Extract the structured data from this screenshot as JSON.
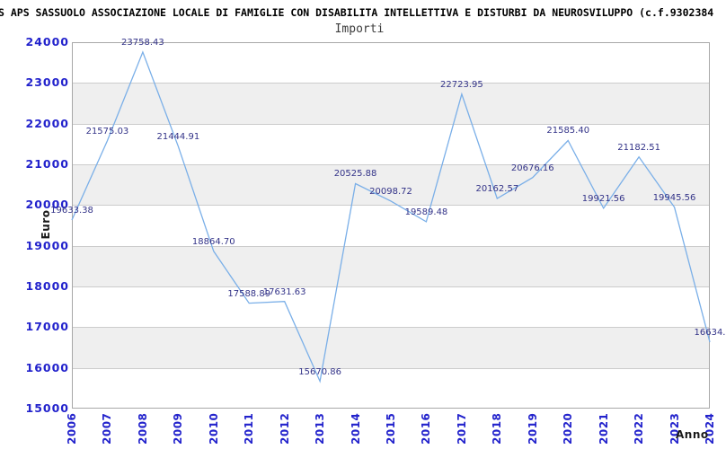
{
  "header": {
    "title": "S APS SASSUOLO ASSOCIAZIONE LOCALE DI FAMIGLIE CON DISABILITA INTELLETTIVA E DISTURBI DA NEUROSVILUPPO (c.f.9302384",
    "subtitle": "Importi"
  },
  "chart_data": {
    "type": "line",
    "title": "Importi",
    "xlabel": "Anno",
    "ylabel": "Euro",
    "ylim": [
      15000,
      24000
    ],
    "ytick_step": 1000,
    "yticks": [
      24000,
      23000,
      22000,
      21000,
      20000,
      19000,
      18000,
      17000,
      16000,
      15000
    ],
    "categories": [
      "2006",
      "2007",
      "2008",
      "2009",
      "2010",
      "2011",
      "2012",
      "2013",
      "2014",
      "2015",
      "2016",
      "2017",
      "2018",
      "2019",
      "2020",
      "2021",
      "2022",
      "2023",
      "2024"
    ],
    "values": [
      19633.38,
      21575.03,
      23758.43,
      21444.91,
      18864.7,
      17588.89,
      17631.63,
      15670.86,
      20525.88,
      20098.72,
      19589.48,
      22723.95,
      20162.57,
      20676.16,
      21585.4,
      19921.56,
      21182.51,
      19945.56,
      16634
    ],
    "point_labels": [
      "19633.38",
      "21575.03",
      "23758.43",
      "21444.91",
      "18864.70",
      "17588.89",
      "17631.63",
      "15670.86",
      "20525.88",
      "20098.72",
      "19589.48",
      "22723.95",
      "20162.57",
      "20676.16",
      "21585.40",
      "19921.56",
      "21182.51",
      "19945.56",
      "16634."
    ],
    "grid": true,
    "legend": "none",
    "colors": {
      "line": "#7aafe8",
      "point_label": "#333388",
      "tick_label": "#2222cc",
      "band": "#efefef",
      "gridline": "#cccccc",
      "plot_border": "#a8a8a8",
      "title": "#000000",
      "subtitle": "#3d3d3d"
    }
  }
}
